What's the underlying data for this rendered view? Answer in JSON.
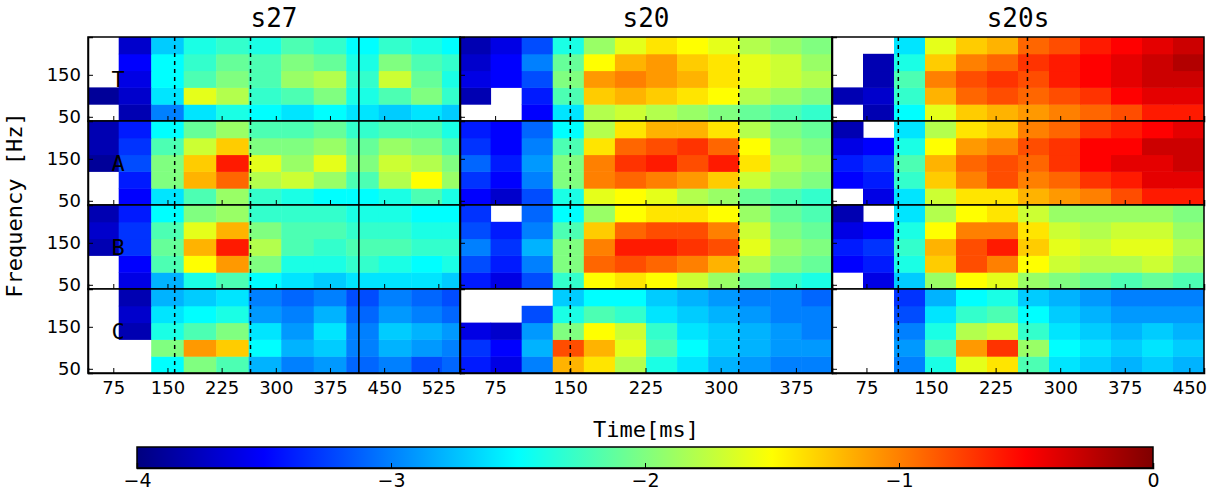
{
  "chart_data": {
    "type": "heatmap",
    "xlabel": "Time[ms]",
    "ylabel": "Frequency [Hz]",
    "ylim": [
      40,
      240
    ],
    "yticks": [
      50,
      150
    ],
    "y": [
      60,
      100,
      140,
      180,
      220
    ],
    "color_range": [
      -4,
      0
    ],
    "color_ticks": [
      {
        "value": -4,
        "label": "−4"
      },
      {
        "value": -3,
        "label": "−3"
      },
      {
        "value": -2,
        "label": "−2"
      },
      {
        "value": -1,
        "label": "−1"
      },
      0
    ],
    "rows": [
      "T",
      "A",
      "B",
      "C"
    ],
    "columns": [
      {
        "title": "s27",
        "xlim": [
          40,
          555
        ],
        "xticks": [
          75,
          150,
          225,
          300,
          375,
          450,
          525
        ],
        "x": [
          60,
          105,
          150,
          195,
          240,
          285,
          330,
          375,
          420,
          465,
          510,
          550
        ],
        "dashed_lines": [
          160,
          265
        ],
        "solid_lines": [
          415
        ],
        "panels": [
          [
            [
              null,
              -3.8,
              -3.0,
              -2.6,
              -2.4,
              -2.5,
              -2.6,
              -2.5,
              -2.6,
              -2.7,
              -2.6,
              -2.7
            ],
            [
              -3.9,
              -3.7,
              -2.6,
              -1.6,
              -1.8,
              -2.3,
              -2.2,
              -2.0,
              -2.4,
              -2.2,
              -2.0,
              -2.3
            ],
            [
              null,
              -3.6,
              -2.5,
              -2.2,
              -2.0,
              -2.2,
              -1.9,
              -1.8,
              -2.3,
              -1.7,
              -2.1,
              -2.4
            ],
            [
              null,
              -3.5,
              -2.5,
              -2.3,
              -2.1,
              -2.2,
              -2.0,
              -2.1,
              -2.4,
              -2.0,
              -2.2,
              -2.3
            ],
            [
              null,
              -3.7,
              -2.7,
              -2.4,
              -2.3,
              -2.4,
              -2.2,
              -2.3,
              -2.5,
              -2.3,
              -2.4,
              -2.5
            ]
          ],
          [
            [
              null,
              -3.5,
              -2.6,
              -2.2,
              -1.9,
              -2.3,
              -2.4,
              -2.5,
              -2.5,
              -2.4,
              -2.2,
              -2.4
            ],
            [
              null,
              -3.4,
              -2.0,
              -1.2,
              -0.9,
              -1.8,
              -1.7,
              -1.9,
              -2.2,
              -1.8,
              -1.5,
              -1.9
            ],
            [
              -3.9,
              -3.2,
              -2.0,
              -1.3,
              -0.6,
              -1.6,
              -1.9,
              -1.6,
              -2.0,
              -1.7,
              -1.8,
              -2.0
            ],
            [
              -3.8,
              -3.3,
              -2.2,
              -1.7,
              -1.3,
              -2.0,
              -2.0,
              -1.9,
              -2.1,
              -1.9,
              -2.0,
              -2.2
            ],
            [
              -3.8,
              -3.4,
              -2.5,
              -2.1,
              -1.9,
              -2.2,
              -2.2,
              -2.1,
              -2.3,
              -2.2,
              -2.2,
              -2.4
            ]
          ],
          [
            [
              null,
              -3.6,
              -2.8,
              -2.4,
              -2.2,
              -2.5,
              -2.6,
              -2.7,
              -2.6,
              -2.6,
              -2.6,
              -2.7
            ],
            [
              null,
              -3.5,
              -2.2,
              -1.5,
              -1.1,
              -2.0,
              -2.4,
              -2.4,
              -2.3,
              -2.4,
              -2.5,
              -2.4
            ],
            [
              -3.8,
              -3.3,
              -2.1,
              -1.2,
              -0.6,
              -1.8,
              -2.2,
              -2.3,
              -2.2,
              -2.2,
              -2.3,
              -2.3
            ],
            [
              -3.7,
              -3.3,
              -2.2,
              -1.6,
              -1.2,
              -2.0,
              -2.2,
              -2.2,
              -2.3,
              -2.3,
              -2.4,
              -2.4
            ],
            [
              -3.8,
              -3.4,
              -2.5,
              -2.0,
              -1.9,
              -2.3,
              -2.3,
              -2.3,
              -2.4,
              -2.4,
              -2.5,
              -2.5
            ]
          ],
          [
            [
              null,
              null,
              -2.5,
              -2.0,
              -2.2,
              -2.8,
              -3.0,
              -2.9,
              -3.1,
              -3.0,
              -3.2,
              -3.1
            ],
            [
              null,
              null,
              -2.0,
              -1.1,
              -1.3,
              -2.5,
              -2.8,
              -2.7,
              -3.0,
              -2.8,
              -2.9,
              -3.0
            ],
            [
              null,
              -3.8,
              -2.4,
              -2.2,
              -2.0,
              -2.6,
              -2.9,
              -2.6,
              -3.0,
              -2.7,
              -2.8,
              -2.9
            ],
            [
              null,
              -3.7,
              -2.6,
              -2.5,
              -2.4,
              -2.9,
              -3.0,
              -2.8,
              -3.1,
              -2.9,
              -3.0,
              -3.1
            ],
            [
              null,
              -3.8,
              -2.8,
              -2.7,
              -2.6,
              -3.0,
              -3.1,
              -3.0,
              -3.2,
              -3.0,
              -3.1,
              -3.2
            ]
          ]
        ]
      },
      {
        "title": "s20",
        "xlim": [
          40,
          411
        ],
        "xticks": [
          75,
          150,
          225,
          300,
          375
        ],
        "x": [
          55,
          86,
          117,
          148,
          179,
          210,
          241,
          272,
          303,
          334,
          365,
          396
        ],
        "dashed_lines": [
          150,
          318
        ],
        "panels": [
          [
            [
              null,
              null,
              -3.5,
              -2.6,
              -1.8,
              -1.7,
              -1.8,
              -1.9,
              -2.0,
              -2.1,
              -2.2,
              -2.3
            ],
            [
              -3.8,
              null,
              -3.4,
              -2.2,
              -1.3,
              -1.2,
              -1.3,
              -1.4,
              -1.5,
              -1.8,
              -1.9,
              -2.0
            ],
            [
              -3.6,
              -3.5,
              -3.2,
              -2.0,
              -1.1,
              -1.0,
              -1.1,
              -1.2,
              -1.4,
              -1.6,
              -1.7,
              -1.8
            ],
            [
              -3.7,
              -3.5,
              -3.0,
              -2.1,
              -1.5,
              -1.2,
              -1.1,
              -1.3,
              -1.4,
              -1.6,
              -1.7,
              -1.9
            ],
            [
              -3.8,
              -3.6,
              -3.2,
              -2.4,
              -1.9,
              -1.6,
              -1.4,
              -1.5,
              -1.6,
              -1.8,
              -1.9,
              -2.0
            ]
          ],
          [
            [
              -3.5,
              -3.7,
              -3.2,
              -2.4,
              -1.6,
              -1.5,
              -1.6,
              -1.8,
              -1.9,
              -2.1,
              -2.2,
              -2.3
            ],
            [
              -3.3,
              -3.5,
              -3.0,
              -2.0,
              -1.0,
              -0.9,
              -1.0,
              -1.1,
              -1.3,
              -1.7,
              -1.9,
              -2.0
            ],
            [
              -3.1,
              -3.4,
              -2.9,
              -2.0,
              -1.0,
              -0.7,
              -0.6,
              -0.8,
              -0.6,
              -1.4,
              -1.8,
              -1.9
            ],
            [
              -3.3,
              -3.5,
              -3.0,
              -2.2,
              -1.4,
              -0.9,
              -0.8,
              -0.7,
              -0.9,
              -1.5,
              -1.9,
              -2.0
            ],
            [
              -3.4,
              -3.5,
              -3.1,
              -2.5,
              -1.8,
              -1.4,
              -1.2,
              -1.2,
              -1.4,
              -1.8,
              -2.0,
              -2.1
            ]
          ],
          [
            [
              -3.4,
              -3.6,
              -3.2,
              -2.3,
              -1.5,
              -1.4,
              -1.5,
              -1.7,
              -1.9,
              -2.1,
              -2.3,
              -2.4
            ],
            [
              -3.2,
              -3.4,
              -3.0,
              -2.0,
              -0.9,
              -0.8,
              -0.9,
              -1.0,
              -1.2,
              -1.8,
              -2.0,
              -2.1
            ],
            [
              -3.0,
              -3.3,
              -2.8,
              -2.0,
              -1.0,
              -0.6,
              -0.6,
              -0.7,
              -0.8,
              -1.6,
              -1.9,
              -2.0
            ],
            [
              -3.2,
              -3.4,
              -3.0,
              -2.2,
              -1.3,
              -0.9,
              -0.8,
              -0.8,
              -1.0,
              -1.7,
              -2.0,
              -2.1
            ],
            [
              -3.3,
              null,
              -3.1,
              -2.5,
              -1.9,
              -1.5,
              -1.4,
              -1.4,
              -1.5,
              -1.9,
              -2.1,
              -2.2
            ]
          ],
          [
            [
              -3.4,
              -3.6,
              -3.0,
              -1.2,
              -1.4,
              -1.8,
              -2.4,
              -2.6,
              -2.8,
              -2.9,
              -3.0,
              -3.0
            ],
            [
              -3.3,
              -3.5,
              -2.8,
              -0.8,
              -1.2,
              -1.6,
              -2.2,
              -2.5,
              -2.7,
              -2.8,
              -2.9,
              -2.9
            ],
            [
              -3.6,
              -3.7,
              -2.9,
              -2.0,
              -1.5,
              -1.7,
              -2.3,
              -2.6,
              -2.7,
              -2.8,
              -2.9,
              -3.0
            ],
            [
              null,
              null,
              -3.2,
              -2.4,
              -2.2,
              -2.3,
              -2.6,
              -2.7,
              -2.8,
              -2.9,
              -3.0,
              -3.0
            ],
            [
              null,
              null,
              null,
              -2.7,
              -2.5,
              -2.5,
              -2.7,
              -2.8,
              -2.9,
              -3.0,
              -3.0,
              -3.1
            ]
          ]
        ]
      },
      {
        "title": "s20s",
        "xlim": [
          35,
          467
        ],
        "xticks": [
          75,
          150,
          225,
          300,
          375,
          450
        ],
        "x": [
          53,
          89,
          125,
          161,
          197,
          233,
          269,
          305,
          341,
          377,
          413,
          449
        ],
        "dashed_lines": [
          112,
          262
        ],
        "panels": [
          [
            [
              null,
              -3.8,
              -2.5,
              -1.6,
              -1.3,
              -1.2,
              -1.1,
              -1.0,
              -0.9,
              -0.8,
              -0.6,
              -0.6
            ],
            [
              -3.8,
              -3.7,
              -2.3,
              -1.2,
              -0.9,
              -0.8,
              -0.9,
              -0.8,
              -0.7,
              -0.5,
              -0.4,
              -0.4
            ],
            [
              null,
              -3.8,
              -2.2,
              -1.0,
              -0.8,
              -0.7,
              -0.8,
              -0.6,
              -0.5,
              -0.4,
              -0.3,
              -0.3
            ],
            [
              null,
              -3.8,
              -2.4,
              -1.3,
              -1.0,
              -0.9,
              -0.7,
              -0.6,
              -0.5,
              -0.4,
              -0.3,
              -0.2
            ],
            [
              null,
              null,
              -2.6,
              -1.6,
              -1.3,
              -1.2,
              -0.9,
              -0.8,
              -0.6,
              -0.5,
              -0.4,
              -0.3
            ]
          ],
          [
            [
              null,
              -3.6,
              -2.6,
              -1.7,
              -1.4,
              -1.4,
              -1.2,
              -1.1,
              -1.0,
              -0.8,
              -0.6,
              -0.6
            ],
            [
              -3.5,
              -3.4,
              -2.3,
              -1.3,
              -1.0,
              -0.8,
              -1.0,
              -0.9,
              -0.7,
              -0.6,
              -0.4,
              -0.4
            ],
            [
              -3.4,
              -3.3,
              -2.2,
              -1.2,
              -0.9,
              -0.8,
              -0.9,
              -0.7,
              -0.5,
              -0.4,
              -0.4,
              -0.3
            ],
            [
              -3.6,
              -3.5,
              -2.4,
              -1.5,
              -1.1,
              -1.0,
              -0.8,
              -0.7,
              -0.5,
              -0.5,
              -0.3,
              -0.3
            ],
            [
              -3.8,
              null,
              -2.6,
              -1.8,
              -1.4,
              -1.3,
              -1.0,
              -0.9,
              -0.7,
              -0.6,
              -0.5,
              -0.4
            ]
          ],
          [
            [
              null,
              -3.6,
              -2.7,
              -1.9,
              -1.5,
              -1.6,
              -1.9,
              -2.0,
              -2.1,
              -2.2,
              -2.1,
              -2.2
            ],
            [
              -3.5,
              -3.4,
              -2.4,
              -1.3,
              -0.8,
              -1.0,
              -1.5,
              -1.7,
              -1.8,
              -1.8,
              -1.7,
              -1.9
            ],
            [
              -3.4,
              -3.3,
              -2.3,
              -1.2,
              -0.8,
              -0.6,
              -1.3,
              -1.6,
              -1.7,
              -1.6,
              -1.6,
              -1.8
            ],
            [
              -3.6,
              -3.5,
              -2.4,
              -1.5,
              -1.0,
              -1.0,
              -1.4,
              -1.7,
              -1.8,
              -1.7,
              -1.7,
              -1.9
            ],
            [
              -3.8,
              null,
              -2.6,
              -1.8,
              -1.5,
              -1.4,
              -1.7,
              -1.9,
              -1.9,
              -1.9,
              -1.9,
              -2.0
            ]
          ],
          [
            [
              null,
              null,
              -3.0,
              -2.4,
              -1.6,
              -1.4,
              -2.2,
              -2.6,
              -2.7,
              -2.8,
              -2.7,
              -2.8
            ],
            [
              null,
              null,
              -2.9,
              -2.2,
              -1.1,
              -0.7,
              -1.9,
              -2.5,
              -2.6,
              -2.7,
              -2.6,
              -2.7
            ],
            [
              null,
              null,
              -3.0,
              -2.4,
              -1.8,
              -1.7,
              -2.3,
              -2.6,
              -2.7,
              -2.8,
              -2.7,
              -2.8
            ],
            [
              null,
              null,
              -3.2,
              -2.6,
              -2.3,
              -2.2,
              -2.5,
              -2.7,
              -2.8,
              -2.9,
              -2.9,
              -2.9
            ],
            [
              null,
              null,
              -3.3,
              -2.8,
              -2.5,
              -2.4,
              -2.7,
              -2.8,
              -2.9,
              -3.0,
              -3.0,
              -3.0
            ]
          ]
        ]
      }
    ]
  }
}
